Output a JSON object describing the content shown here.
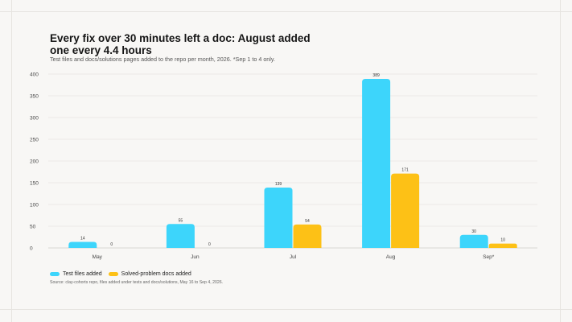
{
  "header": {
    "title": "Every fix over 30 minutes left a doc: August added one every 4.4 hours",
    "subtitle": "Test files and docs/solutions pages added to the repo per month, 2026. *Sep 1 to 4 only."
  },
  "source_note": "Source: clay-cohorts repo, files added under tests and docs/solutions, May 16 to Sep 4, 2026.",
  "colors": {
    "tests": "#3dd5fb",
    "docs": "#fdc116",
    "grid": "#e8e6e2",
    "axis_text": "#444444"
  },
  "chart_data": {
    "type": "bar",
    "title": "Every fix over 30 minutes left a doc: August added one every 4.4 hours",
    "subtitle": "Test files and docs/solutions pages added to the repo per month, 2026. *Sep 1 to 4 only.",
    "categories": [
      "May",
      "Jun",
      "Jul",
      "Aug",
      "Sep*"
    ],
    "series": [
      {
        "name": "Test files added",
        "values": [
          14,
          55,
          139,
          389,
          30
        ]
      },
      {
        "name": "Solved-problem docs added",
        "values": [
          0,
          0,
          54,
          171,
          10
        ]
      }
    ],
    "ylim": [
      0,
      400
    ],
    "yticks": [
      0,
      50,
      100,
      150,
      200,
      250,
      300,
      350,
      400
    ],
    "grid": true,
    "legend": "bottom-left",
    "xlabel": "",
    "ylabel": ""
  }
}
